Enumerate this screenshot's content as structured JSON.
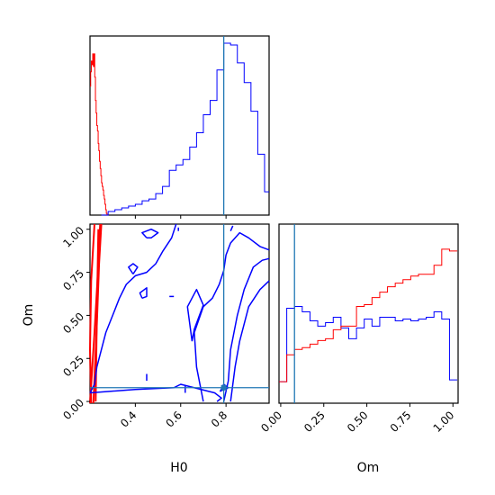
{
  "chart_data": {
    "type": "corner",
    "title": "",
    "params": [
      "H0",
      "Om"
    ],
    "truth": {
      "H0": 0.79,
      "Om": 0.08
    },
    "series_colors": {
      "red": "#ff0000",
      "blue": "#0000ff",
      "truth": "#1f77b4"
    },
    "ranges": {
      "H0": [
        0.2,
        0.99
      ],
      "Om": [
        -0.01,
        1.03
      ]
    },
    "xticks": {
      "H0": [
        "0.4",
        "0.6",
        "0.8"
      ],
      "Om": [
        "0.00",
        "0.25",
        "0.50",
        "0.75",
        "1.00"
      ]
    },
    "yticks": {
      "Om": [
        "0.00",
        "0.25",
        "0.50",
        "0.75",
        "1.00"
      ]
    },
    "tick_values": {
      "H0": [
        0.4,
        0.6,
        0.8
      ],
      "Om": [
        0.0,
        0.25,
        0.5,
        0.75,
        1.0
      ]
    },
    "xlabel": {
      "H0": "H0",
      "Om": "Om"
    },
    "ylabel": {
      "Om": "Om"
    },
    "h0_hist": {
      "red": {
        "x": [
          0.2,
          0.203,
          0.206,
          0.209,
          0.212,
          0.215,
          0.218,
          0.221,
          0.224,
          0.227,
          0.23,
          0.233,
          0.236,
          0.239,
          0.242,
          0.245,
          0.248,
          0.251,
          0.254,
          0.257,
          0.26,
          0.263,
          0.266,
          0.269,
          0.272,
          0.275
        ],
        "y": [
          0.72,
          0.8,
          0.86,
          0.84,
          0.9,
          0.83,
          0.9,
          0.77,
          0.64,
          0.57,
          0.5,
          0.47,
          0.4,
          0.36,
          0.3,
          0.26,
          0.22,
          0.18,
          0.16,
          0.14,
          0.11,
          0.09,
          0.06,
          0.03,
          0.01,
          0.0
        ]
      },
      "blue": {
        "x": [
          0.25,
          0.28,
          0.31,
          0.34,
          0.37,
          0.4,
          0.43,
          0.46,
          0.49,
          0.52,
          0.55,
          0.58,
          0.61,
          0.64,
          0.67,
          0.7,
          0.73,
          0.76,
          0.79,
          0.82,
          0.85,
          0.88,
          0.91,
          0.94,
          0.97
        ],
        "y": [
          0.0,
          0.02,
          0.03,
          0.04,
          0.05,
          0.06,
          0.08,
          0.09,
          0.12,
          0.16,
          0.25,
          0.28,
          0.31,
          0.38,
          0.46,
          0.56,
          0.64,
          0.81,
          0.96,
          0.95,
          0.85,
          0.74,
          0.58,
          0.34,
          0.13
        ]
      }
    },
    "om_hist": {
      "red": {
        "x": [
          -0.01,
          0.035,
          0.08,
          0.125,
          0.17,
          0.215,
          0.26,
          0.305,
          0.35,
          0.395,
          0.44,
          0.485,
          0.53,
          0.575,
          0.62,
          0.665,
          0.71,
          0.755,
          0.8,
          0.845,
          0.89,
          0.935,
          0.98
        ],
        "y": [
          0.12,
          0.27,
          0.3,
          0.31,
          0.33,
          0.35,
          0.36,
          0.41,
          0.43,
          0.43,
          0.54,
          0.55,
          0.59,
          0.62,
          0.65,
          0.67,
          0.69,
          0.71,
          0.72,
          0.72,
          0.77,
          0.86,
          0.85
        ]
      },
      "blue": {
        "x": [
          -0.01,
          0.035,
          0.08,
          0.125,
          0.17,
          0.215,
          0.26,
          0.305,
          0.35,
          0.395,
          0.44,
          0.485,
          0.53,
          0.575,
          0.62,
          0.665,
          0.71,
          0.755,
          0.8,
          0.845,
          0.89,
          0.935,
          0.98
        ],
        "y": [
          0.12,
          0.53,
          0.54,
          0.51,
          0.46,
          0.43,
          0.45,
          0.48,
          0.42,
          0.36,
          0.42,
          0.47,
          0.43,
          0.48,
          0.48,
          0.46,
          0.47,
          0.46,
          0.47,
          0.48,
          0.51,
          0.47,
          0.13
        ]
      }
    },
    "contours": {
      "red": [
        [
          [
            0.2,
            -0.01
          ],
          [
            0.22,
            0.4
          ],
          [
            0.235,
            0.75
          ],
          [
            0.245,
            1.03
          ]
        ],
        [
          [
            0.205,
            -0.01
          ],
          [
            0.2,
            0.3
          ],
          [
            0.205,
            0.7
          ],
          [
            0.22,
            1.03
          ]
        ],
        [
          [
            0.215,
            -0.01
          ],
          [
            0.23,
            0.45
          ],
          [
            0.24,
            0.8
          ],
          [
            0.25,
            1.03
          ]
        ],
        [
          [
            0.225,
            0.0
          ],
          [
            0.23,
            0.5
          ],
          [
            0.237,
            1.0
          ]
        ]
      ],
      "blue": [
        [
          [
            0.58,
            1.03
          ],
          [
            0.56,
            0.95
          ],
          [
            0.52,
            0.87
          ],
          [
            0.49,
            0.8
          ],
          [
            0.45,
            0.75
          ],
          [
            0.4,
            0.73
          ],
          [
            0.36,
            0.68
          ],
          [
            0.33,
            0.6
          ],
          [
            0.3,
            0.5
          ],
          [
            0.27,
            0.4
          ],
          [
            0.25,
            0.3
          ],
          [
            0.23,
            0.2
          ],
          [
            0.22,
            0.1
          ],
          [
            0.2,
            0.05
          ]
        ],
        [
          [
            0.2,
            0.05
          ],
          [
            0.4,
            0.07
          ],
          [
            0.57,
            0.08
          ],
          [
            0.6,
            0.1
          ],
          [
            0.75,
            0.05
          ],
          [
            0.78,
            0.02
          ],
          [
            0.76,
            0.0
          ]
        ],
        [
          [
            0.7,
            0.0
          ],
          [
            0.67,
            0.2
          ],
          [
            0.66,
            0.4
          ],
          [
            0.7,
            0.55
          ],
          [
            0.74,
            0.6
          ],
          [
            0.77,
            0.68
          ],
          [
            0.79,
            0.76
          ],
          [
            0.8,
            0.85
          ],
          [
            0.82,
            0.92
          ],
          [
            0.86,
            0.98
          ],
          [
            0.9,
            0.95
          ],
          [
            0.95,
            0.9
          ],
          [
            0.99,
            0.88
          ]
        ],
        [
          [
            0.79,
            0.0
          ],
          [
            0.81,
            0.12
          ],
          [
            0.82,
            0.3
          ],
          [
            0.85,
            0.5
          ],
          [
            0.88,
            0.65
          ],
          [
            0.92,
            0.78
          ],
          [
            0.96,
            0.82
          ],
          [
            0.99,
            0.83
          ]
        ],
        [
          [
            0.82,
            0.0
          ],
          [
            0.84,
            0.2
          ],
          [
            0.86,
            0.35
          ],
          [
            0.9,
            0.55
          ],
          [
            0.95,
            0.65
          ],
          [
            0.99,
            0.7
          ]
        ],
        [
          [
            0.39,
            0.74
          ],
          [
            0.37,
            0.78
          ],
          [
            0.39,
            0.8
          ],
          [
            0.41,
            0.78
          ],
          [
            0.39,
            0.74
          ]
        ],
        [
          [
            0.45,
            0.95
          ],
          [
            0.43,
            0.98
          ],
          [
            0.47,
            1.0
          ],
          [
            0.5,
            0.98
          ],
          [
            0.47,
            0.95
          ],
          [
            0.45,
            0.95
          ]
        ],
        [
          [
            0.43,
            0.6
          ],
          [
            0.42,
            0.63
          ],
          [
            0.45,
            0.66
          ],
          [
            0.45,
            0.61
          ],
          [
            0.43,
            0.6
          ]
        ],
        [
          [
            0.55,
            0.61
          ],
          [
            0.57,
            0.61
          ]
        ],
        [
          [
            0.65,
            0.35
          ],
          [
            0.63,
            0.55
          ],
          [
            0.67,
            0.65
          ],
          [
            0.7,
            0.56
          ],
          [
            0.66,
            0.42
          ],
          [
            0.65,
            0.35
          ]
        ],
        [
          [
            0.81,
            0.08
          ],
          [
            0.775,
            0.06
          ],
          [
            0.79,
            0.1
          ],
          [
            0.81,
            0.08
          ]
        ],
        [
          [
            0.62,
            0.05
          ],
          [
            0.62,
            0.09
          ]
        ],
        [
          [
            0.45,
            0.12
          ],
          [
            0.45,
            0.16
          ]
        ],
        [
          [
            0.59,
            0.99
          ],
          [
            0.59,
            1.01
          ]
        ],
        [
          [
            0.82,
            0.99
          ],
          [
            0.83,
            1.02
          ]
        ]
      ]
    }
  }
}
